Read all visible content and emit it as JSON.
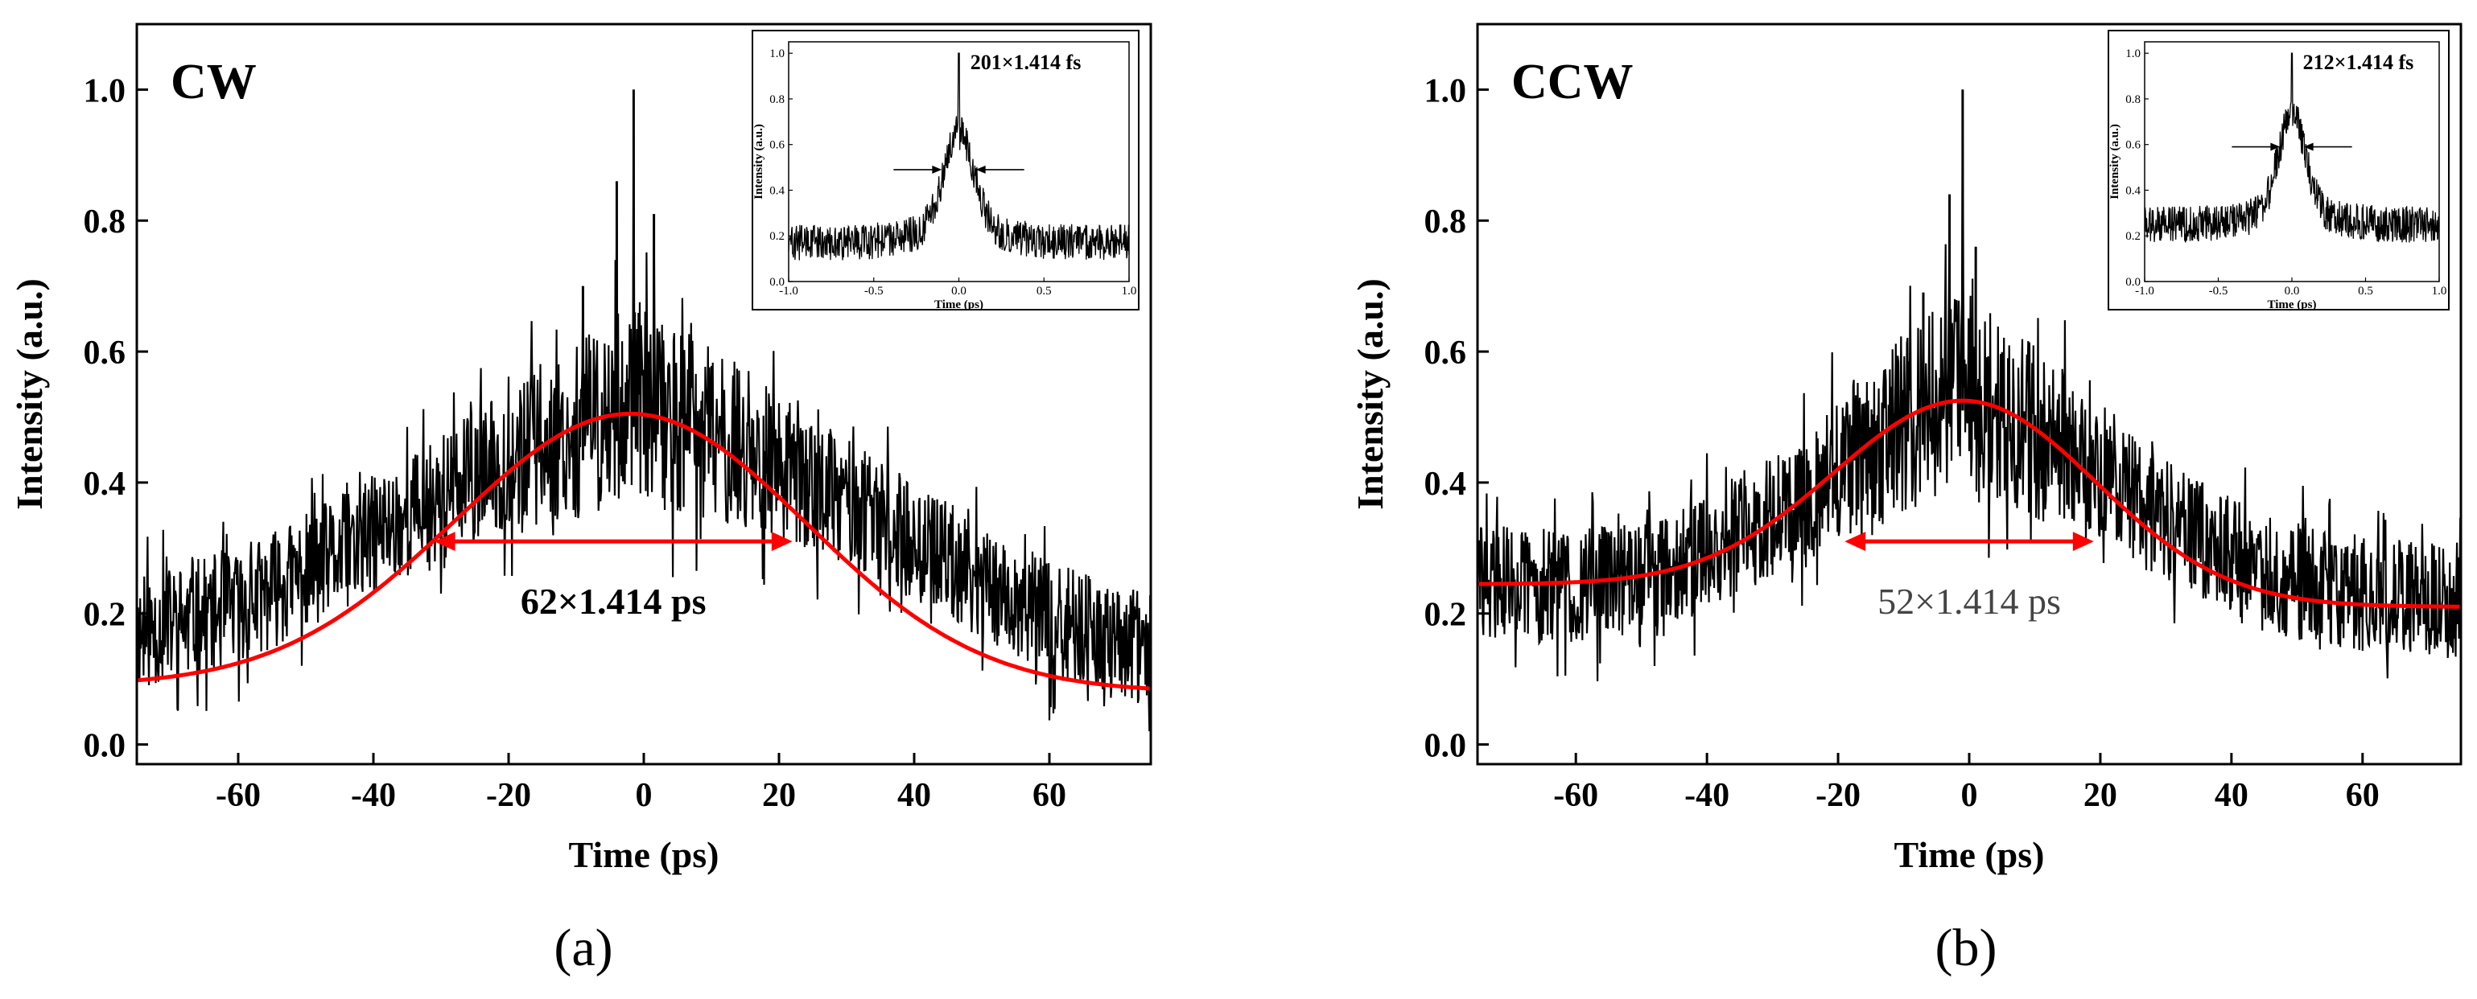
{
  "chart_data": [
    {
      "type": "line",
      "panel": "(a)",
      "title": "CW",
      "xlabel": "Time (ps)",
      "ylabel": "Intensity (a.u.)",
      "xlim": [
        -75,
        75
      ],
      "ylim": [
        -0.03,
        1.1
      ],
      "xticks": [
        -60,
        -40,
        -20,
        0,
        20,
        40,
        60
      ],
      "yticks": [
        0.0,
        0.2,
        0.4,
        0.6,
        0.8,
        1.0
      ],
      "xtick_labels": [
        "-60",
        "-40",
        "-20",
        "0",
        "20",
        "40",
        "60"
      ],
      "ytick_labels": [
        "0.0",
        "0.2",
        "0.4",
        "0.6",
        "0.8",
        "1.0"
      ],
      "series": [
        {
          "name": "measured autocorrelation",
          "color": "#000000",
          "kind": "noisy",
          "x": [
            -75,
            -60,
            -45,
            -30,
            -15,
            -5,
            -2,
            0,
            5,
            15,
            30,
            45,
            60,
            75
          ],
          "y": [
            0.17,
            0.21,
            0.29,
            0.38,
            0.46,
            0.5,
            0.54,
            0.52,
            0.49,
            0.45,
            0.37,
            0.28,
            0.19,
            0.14
          ],
          "spikes": [
            {
              "x": -1.5,
              "y": 1.0
            },
            {
              "x": -4,
              "y": 0.86
            },
            {
              "x": 1.5,
              "y": 0.81
            },
            {
              "x": -9,
              "y": 0.7
            }
          ]
        },
        {
          "name": "fit",
          "color": "#ff0000",
          "kind": "fit",
          "peak_x": -2,
          "peak_y": 0.505,
          "sigma": 26,
          "baseline_left": 0.09,
          "baseline_right": 0.08
        }
      ],
      "fwhm_marker": {
        "x_start": -31,
        "x_end": 22,
        "y": 0.31,
        "label": "62×1.414 ps",
        "color": "#ff0000"
      },
      "inset": {
        "xlabel": "Time (ps)",
        "ylabel": "Intensity (a.u.)",
        "xlim": [
          -1.0,
          1.0
        ],
        "ylim": [
          0.0,
          1.05
        ],
        "xticks": [
          -1.0,
          -0.5,
          0.0,
          0.5,
          1.0
        ],
        "yticks": [
          0.0,
          0.2,
          0.4,
          0.6,
          0.8,
          1.0
        ],
        "xtick_labels": [
          "-1.0",
          "-0.5",
          "0.0",
          "0.5",
          "1.0"
        ],
        "ytick_labels": [
          "0.0",
          "0.2",
          "0.4",
          "0.6",
          "0.8",
          "1.0"
        ],
        "annotation": "201×1.414 fs",
        "baseline": 0.17,
        "peak": 1.0,
        "arrow_y": 0.49,
        "arrow_left": -0.1,
        "arrow_right": 0.1
      }
    },
    {
      "type": "line",
      "panel": "(b)",
      "title": "CCW",
      "xlabel": "Time (ps)",
      "ylabel": "Intensity (a.u.)",
      "xlim": [
        -75,
        75
      ],
      "ylim": [
        -0.03,
        1.1
      ],
      "xticks": [
        -60,
        -40,
        -20,
        0,
        20,
        40,
        60
      ],
      "yticks": [
        0.0,
        0.2,
        0.4,
        0.6,
        0.8,
        1.0
      ],
      "xtick_labels": [
        "-60",
        "-40",
        "-20",
        "0",
        "20",
        "40",
        "60"
      ],
      "ytick_labels": [
        "0.0",
        "0.2",
        "0.4",
        "0.6",
        "0.8",
        "1.0"
      ],
      "series": [
        {
          "name": "measured autocorrelation",
          "color": "#000000",
          "kind": "noisy",
          "x": [
            -75,
            -60,
            -45,
            -30,
            -15,
            -5,
            -1,
            0,
            5,
            15,
            30,
            45,
            60,
            75
          ],
          "y": [
            0.25,
            0.24,
            0.27,
            0.35,
            0.46,
            0.52,
            0.56,
            0.54,
            0.5,
            0.45,
            0.34,
            0.26,
            0.23,
            0.22
          ],
          "spikes": [
            {
              "x": -1,
              "y": 1.0
            },
            {
              "x": -3,
              "y": 0.84
            },
            {
              "x": 1,
              "y": 0.76
            },
            {
              "x": -7,
              "y": 0.69
            }
          ]
        },
        {
          "name": "fit",
          "color": "#ff0000",
          "kind": "fit",
          "peak_x": -1,
          "peak_y": 0.525,
          "sigma": 20,
          "baseline_left": 0.245,
          "baseline_right": 0.21
        }
      ],
      "fwhm_marker": {
        "x_start": -19,
        "x_end": 19,
        "y": 0.31,
        "label": "52×1.414 ps",
        "color": "#ff0000"
      },
      "inset": {
        "xlabel": "Time (ps)",
        "ylabel": "Intensity (a.u.)",
        "xlim": [
          -1.0,
          1.0
        ],
        "ylim": [
          0.0,
          1.05
        ],
        "xticks": [
          -1.0,
          -0.5,
          0.0,
          0.5,
          1.0
        ],
        "yticks": [
          0.0,
          0.2,
          0.4,
          0.6,
          0.8,
          1.0
        ],
        "xtick_labels": [
          "-1.0",
          "-0.5",
          "0.0",
          "0.5",
          "1.0"
        ],
        "ytick_labels": [
          "0.0",
          "0.2",
          "0.4",
          "0.6",
          "0.8",
          "1.0"
        ],
        "annotation": "212×1.414 fs",
        "baseline": 0.25,
        "peak": 1.0,
        "arrow_y": 0.59,
        "arrow_left": -0.08,
        "arrow_right": 0.08
      }
    }
  ]
}
